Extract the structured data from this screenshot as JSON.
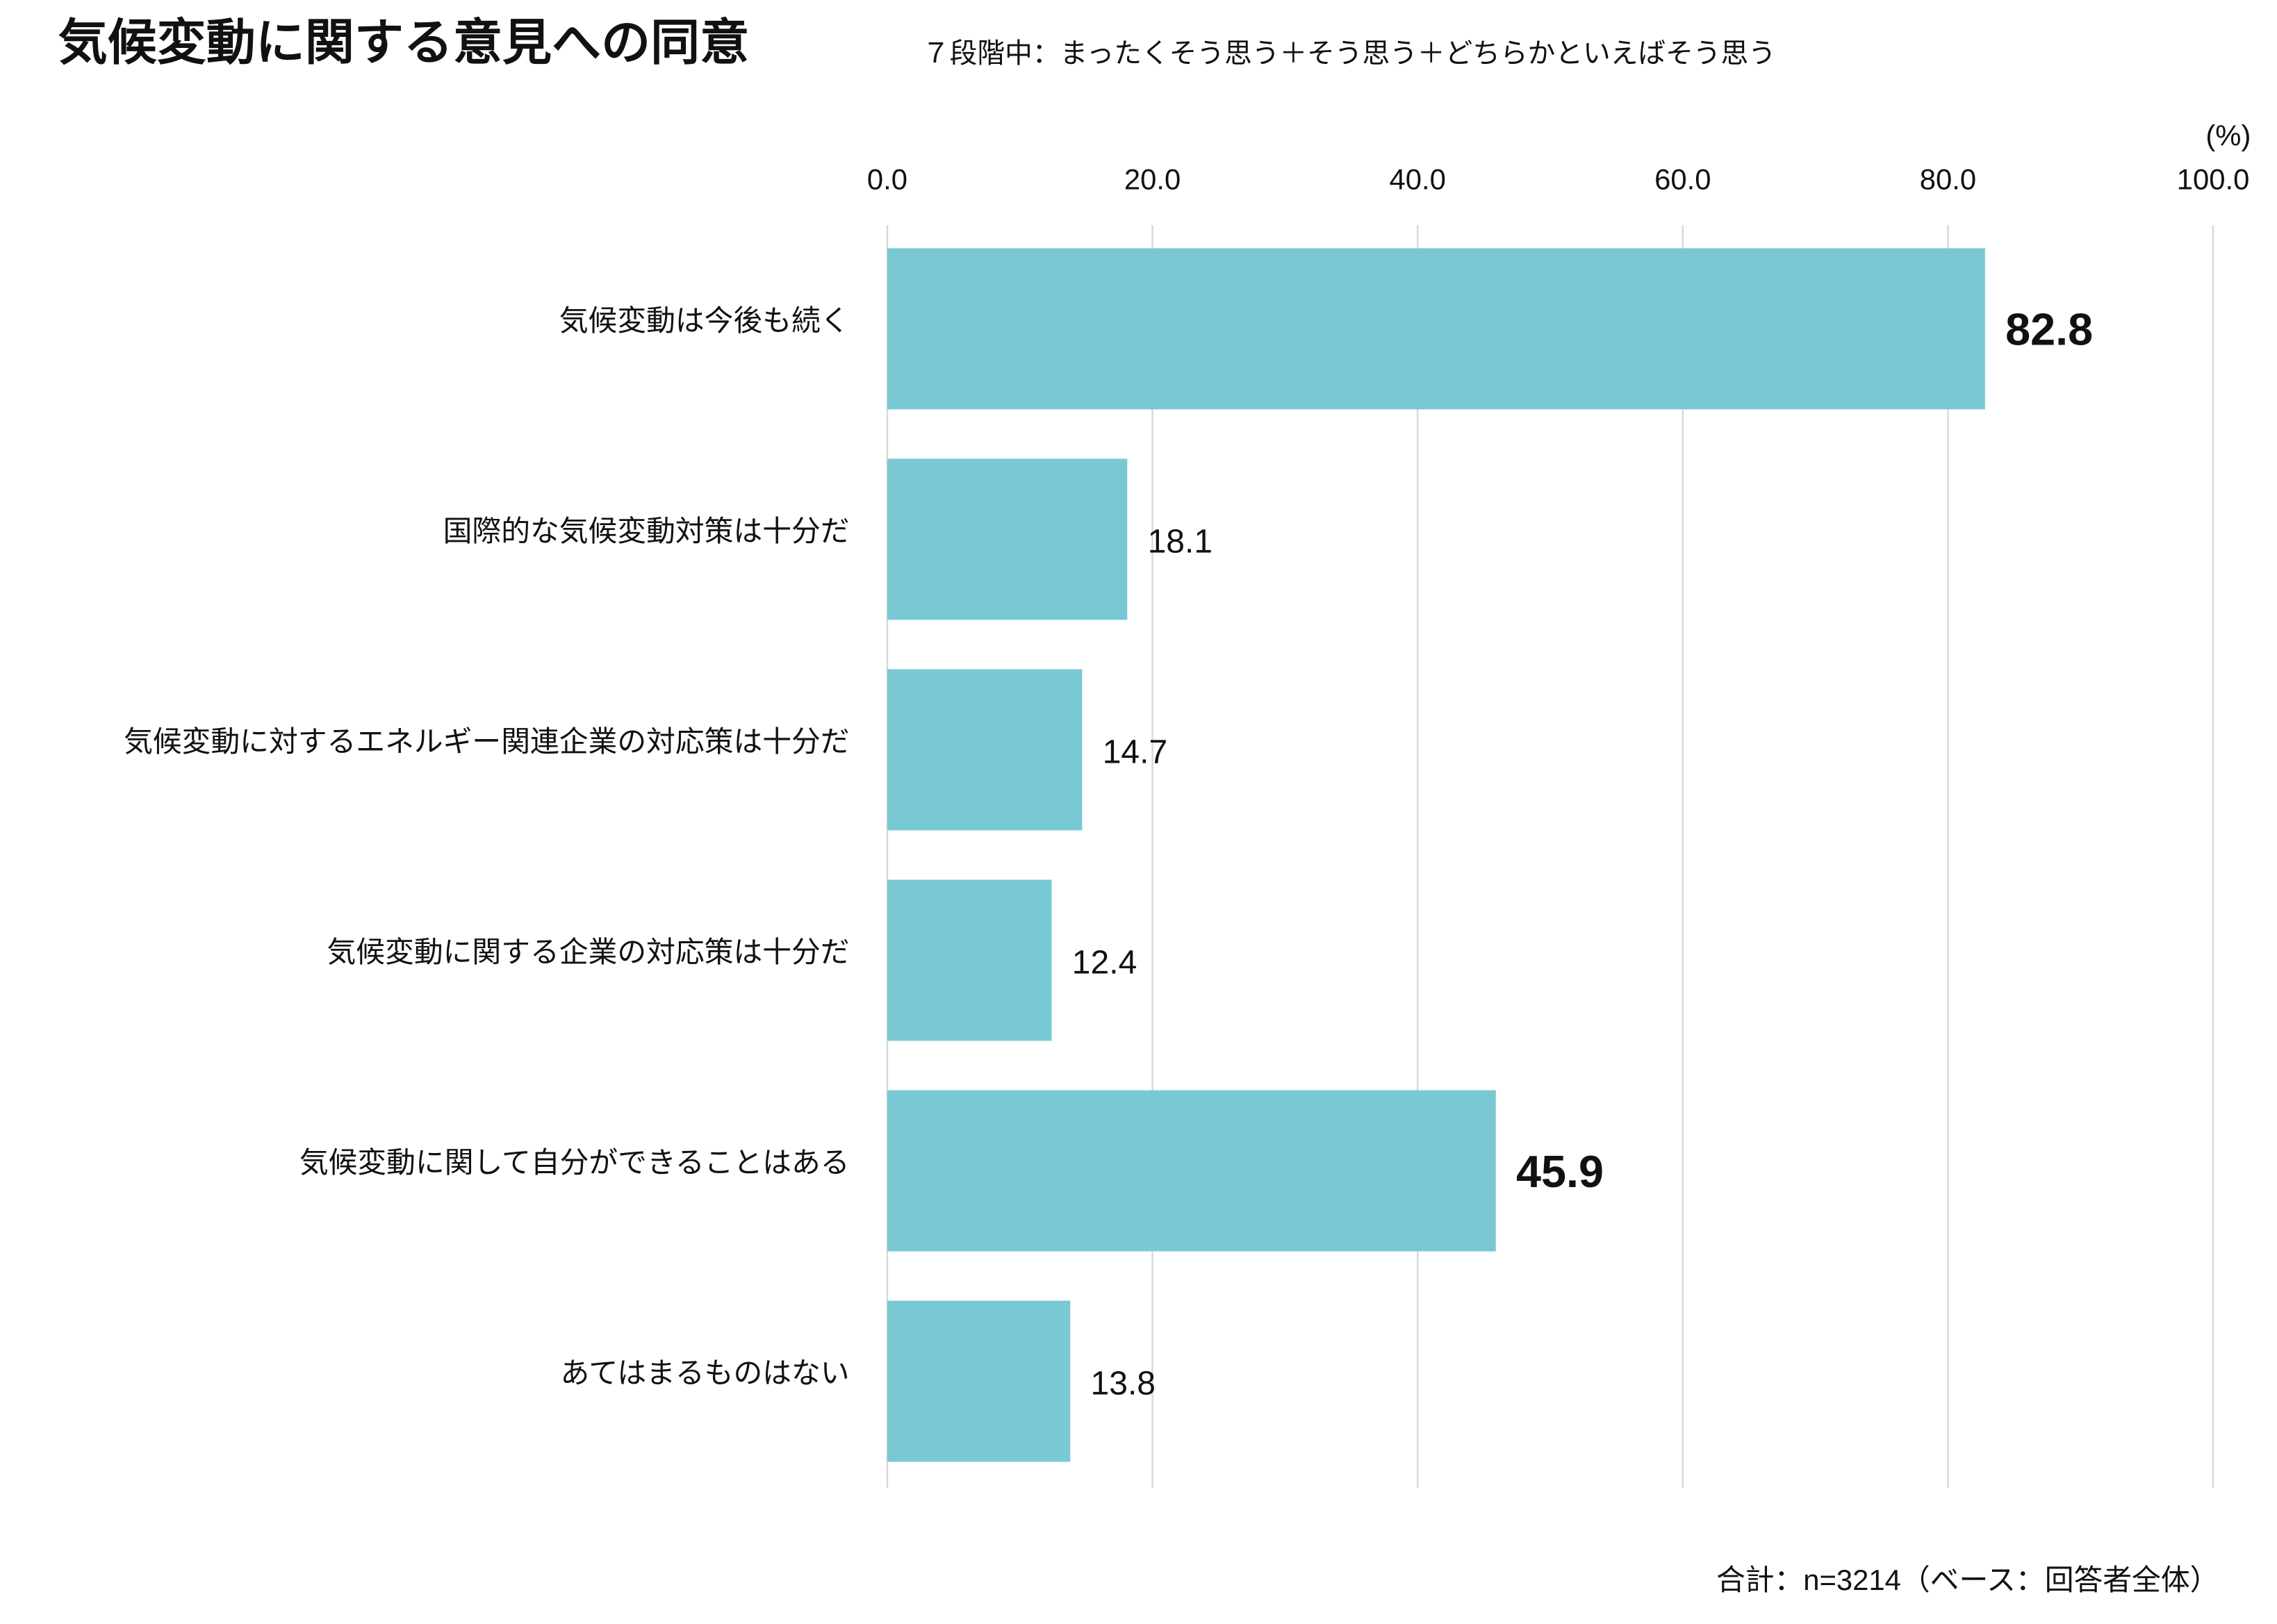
{
  "chart_data": {
    "type": "bar",
    "orientation": "horizontal",
    "title": "気候変動に関する意見への同意",
    "subtitle": "７段階中：まったくそう思う＋そう思う＋どちらかといえばそう思う",
    "unit_label": "(%)",
    "footnote": "合計：n=3214（ベース：回答者全体）",
    "categories": [
      "気候変動は今後も続く",
      "国際的な気候変動対策は十分だ",
      "気候変動に対するエネルギー関連企業の対応策は十分だ",
      "気候変動に関する企業の対応策は十分だ",
      "気候変動に関して自分ができることはある",
      "あてはまるものはない"
    ],
    "values": [
      82.8,
      18.1,
      14.7,
      12.4,
      45.9,
      13.8
    ],
    "bold_labels": [
      true,
      false,
      false,
      false,
      true,
      false
    ],
    "color": "#79c9d5",
    "xlim": [
      0,
      100
    ],
    "xticks": [
      {
        "value": 0,
        "label": "0.0"
      },
      {
        "value": 20,
        "label": "20.0"
      },
      {
        "value": 40,
        "label": "40.0"
      },
      {
        "value": 60,
        "label": "60.0"
      },
      {
        "value": 80,
        "label": "80.0"
      },
      {
        "value": 100,
        "label": "100.0"
      }
    ],
    "grid": true
  }
}
